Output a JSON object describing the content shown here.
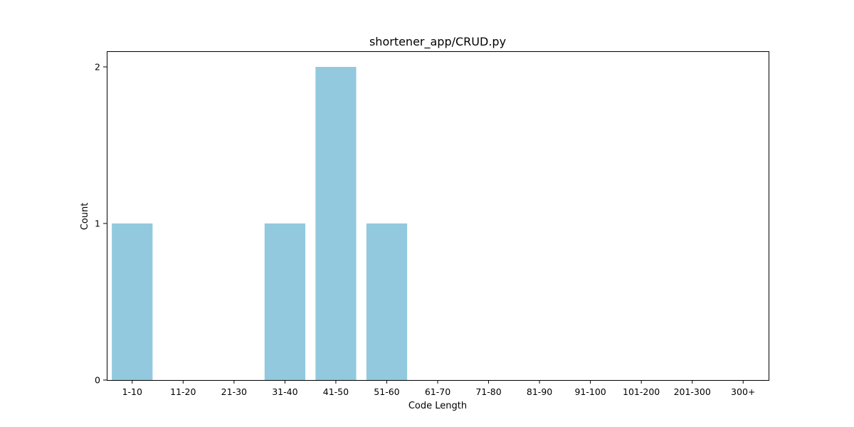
{
  "chart_data": {
    "type": "bar",
    "title": "shortener_app/CRUD.py",
    "xlabel": "Code Length",
    "ylabel": "Count",
    "categories": [
      "1-10",
      "11-20",
      "21-30",
      "31-40",
      "41-50",
      "51-60",
      "61-70",
      "71-80",
      "81-90",
      "91-100",
      "101-200",
      "201-300",
      "300+"
    ],
    "values": [
      1,
      0,
      0,
      1,
      2,
      1,
      0,
      0,
      0,
      0,
      0,
      0,
      0
    ],
    "ylim": [
      0,
      2.1
    ],
    "yticks": [
      0,
      1,
      2
    ],
    "bar_color": "#92c9de",
    "grid": false,
    "legend": false
  }
}
